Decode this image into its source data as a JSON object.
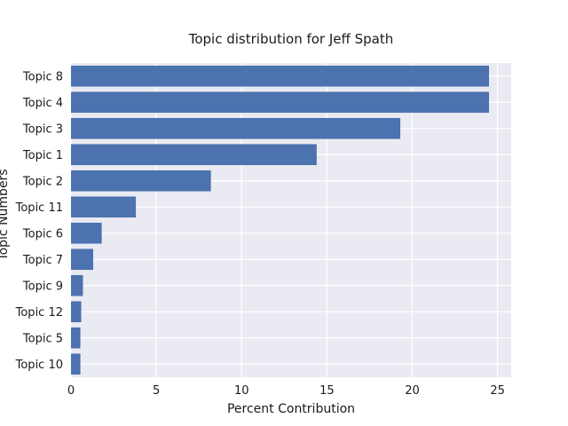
{
  "chart_data": {
    "type": "bar",
    "orientation": "horizontal",
    "title": "Topic distribution for Jeff Spath",
    "xlabel": "Percent Contribution",
    "ylabel": "Topic Numbers",
    "categories": [
      "Topic 8",
      "Topic 4",
      "Topic 3",
      "Topic 1",
      "Topic 2",
      "Topic 11",
      "Topic 6",
      "Topic 7",
      "Topic 9",
      "Topic 12",
      "Topic 5",
      "Topic 10"
    ],
    "values": [
      24.5,
      24.5,
      19.3,
      14.4,
      8.2,
      3.8,
      1.8,
      1.3,
      0.7,
      0.6,
      0.55,
      0.55
    ],
    "xlim": [
      0,
      25.8
    ],
    "xticks": [
      0,
      5,
      10,
      15,
      20,
      25
    ],
    "grid": true,
    "colors": {
      "bar": "#4c72b0",
      "plot_bg": "#eaeaf2",
      "grid": "#ffffff"
    }
  }
}
